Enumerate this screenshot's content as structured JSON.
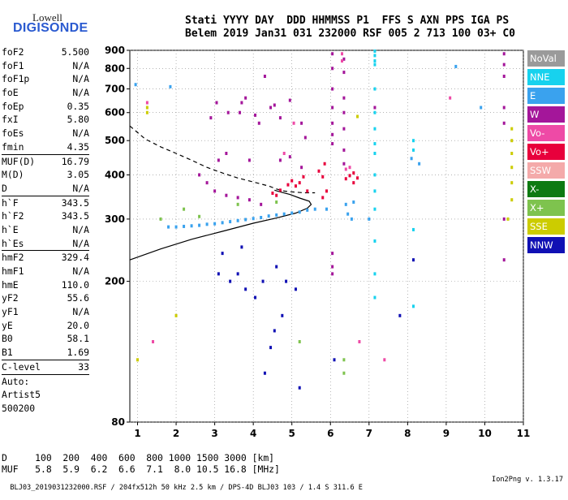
{
  "logo": {
    "line1": "Lowell",
    "line2": "DIGISONDE"
  },
  "header": {
    "line1": "Stati YYYY DAY  DDD HHMMSS P1  FFS S AXN PPS IGA PS",
    "line2": "Belem 2019 Jan31 031 232000 RSF 005 2 713 100 03+ C0"
  },
  "params": [
    {
      "k": "foF2",
      "v": "5.500"
    },
    {
      "k": "foF1",
      "v": "N/A"
    },
    {
      "k": "foF1p",
      "v": "N/A"
    },
    {
      "k": "foE",
      "v": "N/A"
    },
    {
      "k": "foEp",
      "v": "0.35"
    },
    {
      "k": "fxI",
      "v": "5.80"
    },
    {
      "k": "foEs",
      "v": "N/A"
    },
    {
      "k": "fmin",
      "v": "4.35"
    },
    {
      "k": "MUF(D)",
      "v": "16.79",
      "sep": true
    },
    {
      "k": "M(D)",
      "v": "3.05"
    },
    {
      "k": "D",
      "v": "N/A"
    },
    {
      "k": "h`F",
      "v": "343.5",
      "sep": true
    },
    {
      "k": "h`F2",
      "v": "343.5"
    },
    {
      "k": "h`E",
      "v": "N/A"
    },
    {
      "k": "h`Es",
      "v": "N/A"
    },
    {
      "k": "hmF2",
      "v": "329.4",
      "sep": true
    },
    {
      "k": "hmF1",
      "v": "N/A"
    },
    {
      "k": "hmE",
      "v": "110.0"
    },
    {
      "k": "yF2",
      "v": "55.6"
    },
    {
      "k": "yF1",
      "v": "N/A"
    },
    {
      "k": "yE",
      "v": "20.0"
    },
    {
      "k": "B0",
      "v": "58.1"
    },
    {
      "k": "B1",
      "v": "1.69"
    },
    {
      "k": "C-level",
      "v": "33",
      "sep": true
    },
    {
      "k": "Auto:",
      "v": "",
      "sep": true
    },
    {
      "k": "Artist5",
      "v": ""
    },
    {
      "k": "500200",
      "v": ""
    }
  ],
  "legend": [
    {
      "label": "NoVal",
      "color": "#9a9a9a"
    },
    {
      "label": "NNE",
      "color": "#17d2ee"
    },
    {
      "label": "E",
      "color": "#3aa2ee"
    },
    {
      "label": "W",
      "color": "#a4169a"
    },
    {
      "label": "Vo-",
      "color": "#ee4aa6"
    },
    {
      "label": "Vo+",
      "color": "#e8003c"
    },
    {
      "label": "SSW",
      "color": "#f4aaaa"
    },
    {
      "label": "X-",
      "color": "#0e7a12"
    },
    {
      "label": "X+",
      "color": "#7ec34e"
    },
    {
      "label": "SSE",
      "color": "#cccc00"
    },
    {
      "label": "NNW",
      "color": "#1010b4"
    }
  ],
  "bottom": {
    "line1": "D     100  200  400  600  800 1000 1500 3000 [km]",
    "line2": "MUF   5.8  5.9  6.2  6.6  7.1  8.0 10.5 16.8 [MHz]"
  },
  "footer": {
    "left": "BLJ03_2019031232000.RSF / 204fx512h 50 kHz 2.5 km / DPS-4D BLJ03 103 / 1.4 S 311.6 E",
    "right": "Ion2Png v. 1.3.17"
  },
  "chart_data": {
    "type": "scatter",
    "xlabel": "",
    "ylabel": "",
    "xlim": [
      0.8,
      11
    ],
    "ylim": [
      80,
      900
    ],
    "xticks": [
      1,
      2,
      3,
      4,
      5,
      6,
      7,
      8,
      9,
      10,
      11
    ],
    "yticks": [
      80,
      200,
      300,
      400,
      500,
      600,
      700,
      800,
      900
    ],
    "y_scale": "log",
    "grid": true,
    "series": [
      {
        "name": "trace-dashed",
        "style": "dashed",
        "points": [
          [
            0.8,
            550
          ],
          [
            1.2,
            505
          ],
          [
            1.6,
            480
          ],
          [
            2.0,
            460
          ],
          [
            2.4,
            440
          ],
          [
            2.8,
            420
          ],
          [
            3.2,
            405
          ],
          [
            3.6,
            392
          ],
          [
            4.0,
            382
          ],
          [
            4.4,
            372
          ],
          [
            4.6,
            365
          ],
          [
            4.8,
            360
          ],
          [
            5.0,
            358
          ],
          [
            5.3,
            356
          ],
          [
            5.6,
            356
          ]
        ]
      },
      {
        "name": "trace-solid",
        "style": "solid",
        "points": [
          [
            0.8,
            230
          ],
          [
            1.6,
            247
          ],
          [
            2.4,
            263
          ],
          [
            3.2,
            277
          ],
          [
            4.0,
            292
          ],
          [
            4.6,
            302
          ],
          [
            5.1,
            312
          ],
          [
            5.4,
            322
          ],
          [
            5.5,
            330
          ],
          [
            5.45,
            337
          ],
          [
            5.2,
            344
          ],
          [
            4.95,
            352
          ],
          [
            4.7,
            358
          ],
          [
            4.55,
            362
          ]
        ]
      },
      {
        "name": "e-mode-band",
        "style": "dots",
        "color": "#3aa2ee",
        "points": [
          [
            1.8,
            285
          ],
          [
            2.0,
            285
          ],
          [
            2.2,
            286
          ],
          [
            2.4,
            287
          ],
          [
            2.6,
            288
          ],
          [
            2.8,
            290
          ],
          [
            3.0,
            291
          ],
          [
            3.2,
            293
          ],
          [
            3.4,
            295
          ],
          [
            3.6,
            297
          ],
          [
            3.8,
            299
          ],
          [
            4.0,
            301
          ],
          [
            4.2,
            303
          ],
          [
            4.4,
            306
          ],
          [
            4.6,
            308
          ],
          [
            4.8,
            310
          ],
          [
            5.0,
            312
          ],
          [
            5.2,
            314
          ],
          [
            5.4,
            318
          ],
          [
            5.6,
            320
          ],
          [
            5.9,
            320
          ],
          [
            6.4,
            330
          ],
          [
            6.6,
            335
          ]
        ]
      },
      {
        "name": "vo-plus-cluster",
        "style": "dots",
        "color": "#e8003c",
        "points": [
          [
            4.5,
            355
          ],
          [
            4.6,
            350
          ],
          [
            4.7,
            362
          ],
          [
            4.9,
            375
          ],
          [
            5.0,
            385
          ],
          [
            5.1,
            372
          ],
          [
            5.2,
            380
          ],
          [
            5.3,
            395
          ],
          [
            5.4,
            360
          ],
          [
            5.7,
            410
          ],
          [
            5.8,
            395
          ],
          [
            5.85,
            430
          ],
          [
            5.9,
            360
          ],
          [
            5.8,
            345
          ],
          [
            6.4,
            390
          ],
          [
            6.5,
            398
          ],
          [
            6.6,
            405
          ],
          [
            6.7,
            392
          ],
          [
            6.6,
            380
          ]
        ]
      },
      {
        "name": "w-streaks",
        "style": "dots",
        "color": "#a4169a",
        "points": [
          [
            6.05,
            880
          ],
          [
            6.05,
            800
          ],
          [
            6.05,
            700
          ],
          [
            6.05,
            620
          ],
          [
            6.05,
            560
          ],
          [
            6.05,
            520
          ],
          [
            6.05,
            490
          ],
          [
            6.05,
            240
          ],
          [
            6.05,
            220
          ],
          [
            6.05,
            210
          ],
          [
            6.35,
            850
          ],
          [
            6.35,
            780
          ],
          [
            6.35,
            660
          ],
          [
            6.35,
            600
          ],
          [
            6.35,
            540
          ],
          [
            6.35,
            470
          ],
          [
            6.35,
            430
          ],
          [
            7.15,
            620
          ],
          [
            10.5,
            880
          ],
          [
            10.5,
            820
          ],
          [
            10.5,
            760
          ],
          [
            10.5,
            620
          ],
          [
            10.5,
            560
          ],
          [
            10.5,
            300
          ],
          [
            10.5,
            230
          ]
        ]
      },
      {
        "name": "nne-streaks",
        "style": "dots",
        "color": "#17d2ee",
        "points": [
          [
            7.15,
            895
          ],
          [
            7.15,
            870
          ],
          [
            7.15,
            840
          ],
          [
            7.15,
            820
          ],
          [
            7.15,
            700
          ],
          [
            7.15,
            600
          ],
          [
            7.15,
            540
          ],
          [
            7.15,
            490
          ],
          [
            7.15,
            460
          ],
          [
            7.15,
            400
          ],
          [
            7.15,
            360
          ],
          [
            7.15,
            320
          ],
          [
            7.15,
            260
          ],
          [
            7.15,
            210
          ],
          [
            7.15,
            180
          ],
          [
            8.15,
            500
          ],
          [
            8.15,
            470
          ],
          [
            8.15,
            280
          ],
          [
            8.15,
            170
          ]
        ]
      },
      {
        "name": "scattered-points",
        "style": "dots",
        "color": "#a4169a",
        "points": [
          [
            2.9,
            580
          ],
          [
            3.05,
            640
          ],
          [
            3.35,
            600
          ],
          [
            3.65,
            600
          ],
          [
            3.7,
            640
          ],
          [
            3.8,
            660
          ],
          [
            4.05,
            590
          ],
          [
            4.15,
            560
          ],
          [
            4.3,
            760
          ],
          [
            4.45,
            620
          ],
          [
            4.55,
            630
          ],
          [
            4.7,
            580
          ],
          [
            4.95,
            650
          ],
          [
            5.25,
            560
          ],
          [
            5.35,
            510
          ],
          [
            3.1,
            440
          ],
          [
            3.3,
            460
          ],
          [
            3.9,
            440
          ],
          [
            2.6,
            400
          ],
          [
            2.8,
            380
          ],
          [
            3.0,
            360
          ],
          [
            3.3,
            350
          ],
          [
            3.6,
            345
          ],
          [
            3.9,
            340
          ],
          [
            4.2,
            330
          ],
          [
            4.7,
            440
          ],
          [
            4.95,
            450
          ],
          [
            5.25,
            420
          ]
        ]
      },
      {
        "name": "low-scatter",
        "style": "dots",
        "color": "#1010b4",
        "points": [
          [
            3.1,
            210
          ],
          [
            3.4,
            200
          ],
          [
            3.6,
            210
          ],
          [
            3.8,
            190
          ],
          [
            4.05,
            180
          ],
          [
            4.25,
            200
          ],
          [
            4.6,
            220
          ],
          [
            4.85,
            200
          ],
          [
            5.1,
            190
          ],
          [
            4.3,
            110
          ],
          [
            5.2,
            100
          ],
          [
            6.1,
            120
          ],
          [
            4.45,
            130
          ],
          [
            4.55,
            145
          ],
          [
            4.75,
            160
          ],
          [
            3.2,
            240
          ],
          [
            3.7,
            250
          ],
          [
            8.15,
            230
          ],
          [
            7.8,
            160
          ]
        ]
      },
      {
        "name": "sse-points",
        "style": "dots",
        "color": "#cccc00",
        "points": [
          [
            1.25,
            620
          ],
          [
            1.25,
            600
          ],
          [
            6.7,
            585
          ],
          [
            10.7,
            540
          ],
          [
            10.7,
            500
          ],
          [
            10.7,
            460
          ],
          [
            10.7,
            420
          ],
          [
            10.7,
            380
          ],
          [
            10.7,
            340
          ],
          [
            10.6,
            300
          ],
          [
            1.0,
            120
          ],
          [
            2.0,
            160
          ]
        ]
      },
      {
        "name": "x-plus-points",
        "style": "dots",
        "color": "#7ec34e",
        "points": [
          [
            6.35,
            120
          ],
          [
            6.35,
            110
          ],
          [
            5.2,
            135
          ],
          [
            1.6,
            300
          ],
          [
            2.2,
            320
          ],
          [
            2.6,
            305
          ],
          [
            3.6,
            330
          ],
          [
            4.6,
            335
          ]
        ]
      },
      {
        "name": "vo-minus-points",
        "style": "dots",
        "color": "#ee4aa6",
        "points": [
          [
            1.25,
            640
          ],
          [
            6.3,
            880
          ],
          [
            6.3,
            840
          ],
          [
            9.1,
            660
          ],
          [
            5.05,
            560
          ],
          [
            4.8,
            460
          ],
          [
            1.4,
            135
          ],
          [
            6.75,
            135
          ],
          [
            7.4,
            120
          ],
          [
            6.4,
            415
          ],
          [
            6.5,
            420
          ]
        ]
      },
      {
        "name": "single-points",
        "style": "dots",
        "color": "#3aa2ee",
        "points": [
          [
            0.95,
            720
          ],
          [
            1.85,
            710
          ],
          [
            9.25,
            810
          ],
          [
            9.9,
            620
          ],
          [
            8.1,
            445
          ],
          [
            8.3,
            430
          ],
          [
            7.0,
            300
          ],
          [
            6.55,
            300
          ],
          [
            6.45,
            310
          ]
        ]
      }
    ]
  }
}
